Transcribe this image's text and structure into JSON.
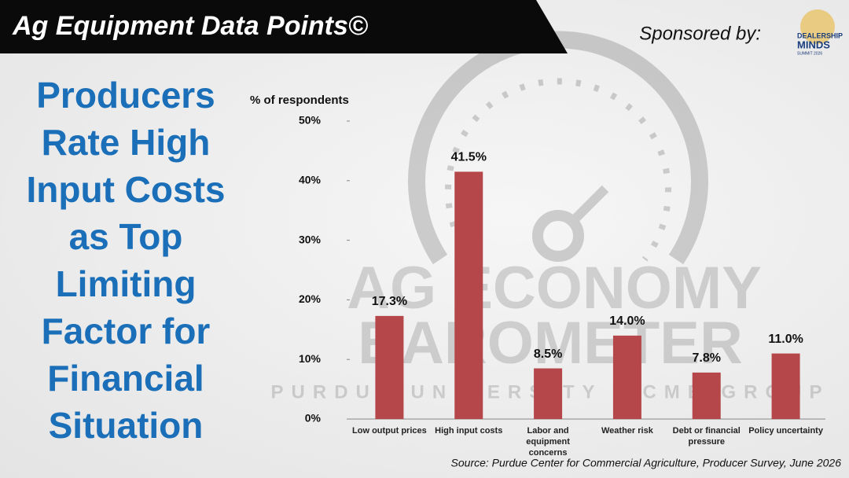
{
  "header": {
    "title": "Ag Equipment Data Points©",
    "sponsor_label": "Sponsored by:",
    "sponsor_logo": [
      "DEALERSHIP",
      "MINDS",
      "SUMMIT 2026"
    ]
  },
  "side_title": [
    "Producers",
    "Rate High",
    "Input Costs",
    "as Top",
    "Limiting",
    "Factor for",
    "Financial",
    "Situation"
  ],
  "watermark": {
    "lines": [
      "AG ECONOMY",
      "BAROMETER",
      "PURDUE UNIVERSITY · CME GROUP"
    ]
  },
  "chart_data": {
    "type": "bar",
    "y_axis_label": "% of respondents",
    "categories": [
      "Low output prices",
      "High input costs",
      "Labor and equipment concerns",
      "Weather risk",
      "Debt or financial pressure",
      "Policy uncertainty"
    ],
    "values": [
      17.3,
      41.5,
      8.5,
      14.0,
      7.8,
      11.0
    ],
    "value_labels": [
      "17.3%",
      "41.5%",
      "8.5%",
      "14.0%",
      "7.8%",
      "11.0%"
    ],
    "color": "#b5474a",
    "ylim": [
      0,
      50
    ],
    "yticks": [
      {
        "value": 0,
        "label": "0%"
      },
      {
        "value": 10,
        "label": "10%"
      },
      {
        "value": 20,
        "label": "20%"
      },
      {
        "value": 30,
        "label": "30%"
      },
      {
        "value": 40,
        "label": "40%"
      },
      {
        "value": 50,
        "label": "50%"
      }
    ],
    "grid": false,
    "source": "Source: Purdue Center for Commercial Agriculture, Producer Survey, June 2026"
  }
}
